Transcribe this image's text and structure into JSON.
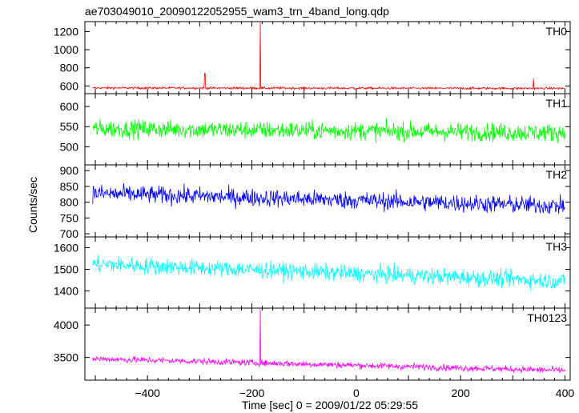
{
  "chart_data": {
    "type": "line",
    "title": "ae703049010_20090122052955_wam3_trn_4band_long.qdp",
    "xlabel": "Time [sec] 0 = 2009/01/22 05:29:55",
    "ylabel": "Counts/sec",
    "xlim": [
      -520,
      410
    ],
    "xticks": [
      -400,
      -200,
      0,
      200,
      400
    ],
    "x_start": -505,
    "x_end": 400,
    "panels": [
      {
        "name": "TH0",
        "color": "#ff0000",
        "ylim": [
          515,
          1310
        ],
        "yticks": [
          600,
          800,
          1000,
          1200
        ],
        "baseline": 578,
        "trend": -5,
        "noise": 18,
        "spikes": [
          {
            "x": -184,
            "value": 1300
          },
          {
            "x": -290,
            "value": 740
          },
          {
            "x": 340,
            "value": 680
          }
        ]
      },
      {
        "name": "TH1",
        "color": "#00ff00",
        "ylim": [
          455,
          632
        ],
        "yticks": [
          500,
          550,
          600
        ],
        "baseline": 545,
        "trend": -10,
        "noise": 32,
        "spikes": []
      },
      {
        "name": "TH2",
        "color": "#0000ff",
        "ylim": [
          690,
          918
        ],
        "yticks": [
          700,
          750,
          800,
          850,
          900
        ],
        "baseline": 828,
        "trend": -40,
        "noise": 40,
        "spikes": []
      },
      {
        "name": "TH3",
        "color": "#00ffff",
        "ylim": [
          1320,
          1650
        ],
        "yticks": [
          1400,
          1500,
          1600
        ],
        "baseline": 1525,
        "trend": -80,
        "noise": 55,
        "spikes": []
      },
      {
        "name": "TH0123",
        "color": "#ff00ff",
        "ylim": [
          3150,
          4260
        ],
        "yticks": [
          3500,
          4000
        ],
        "baseline": 3480,
        "trend": -180,
        "noise": 70,
        "spikes": [
          {
            "x": -184,
            "value": 4250
          }
        ]
      }
    ]
  }
}
